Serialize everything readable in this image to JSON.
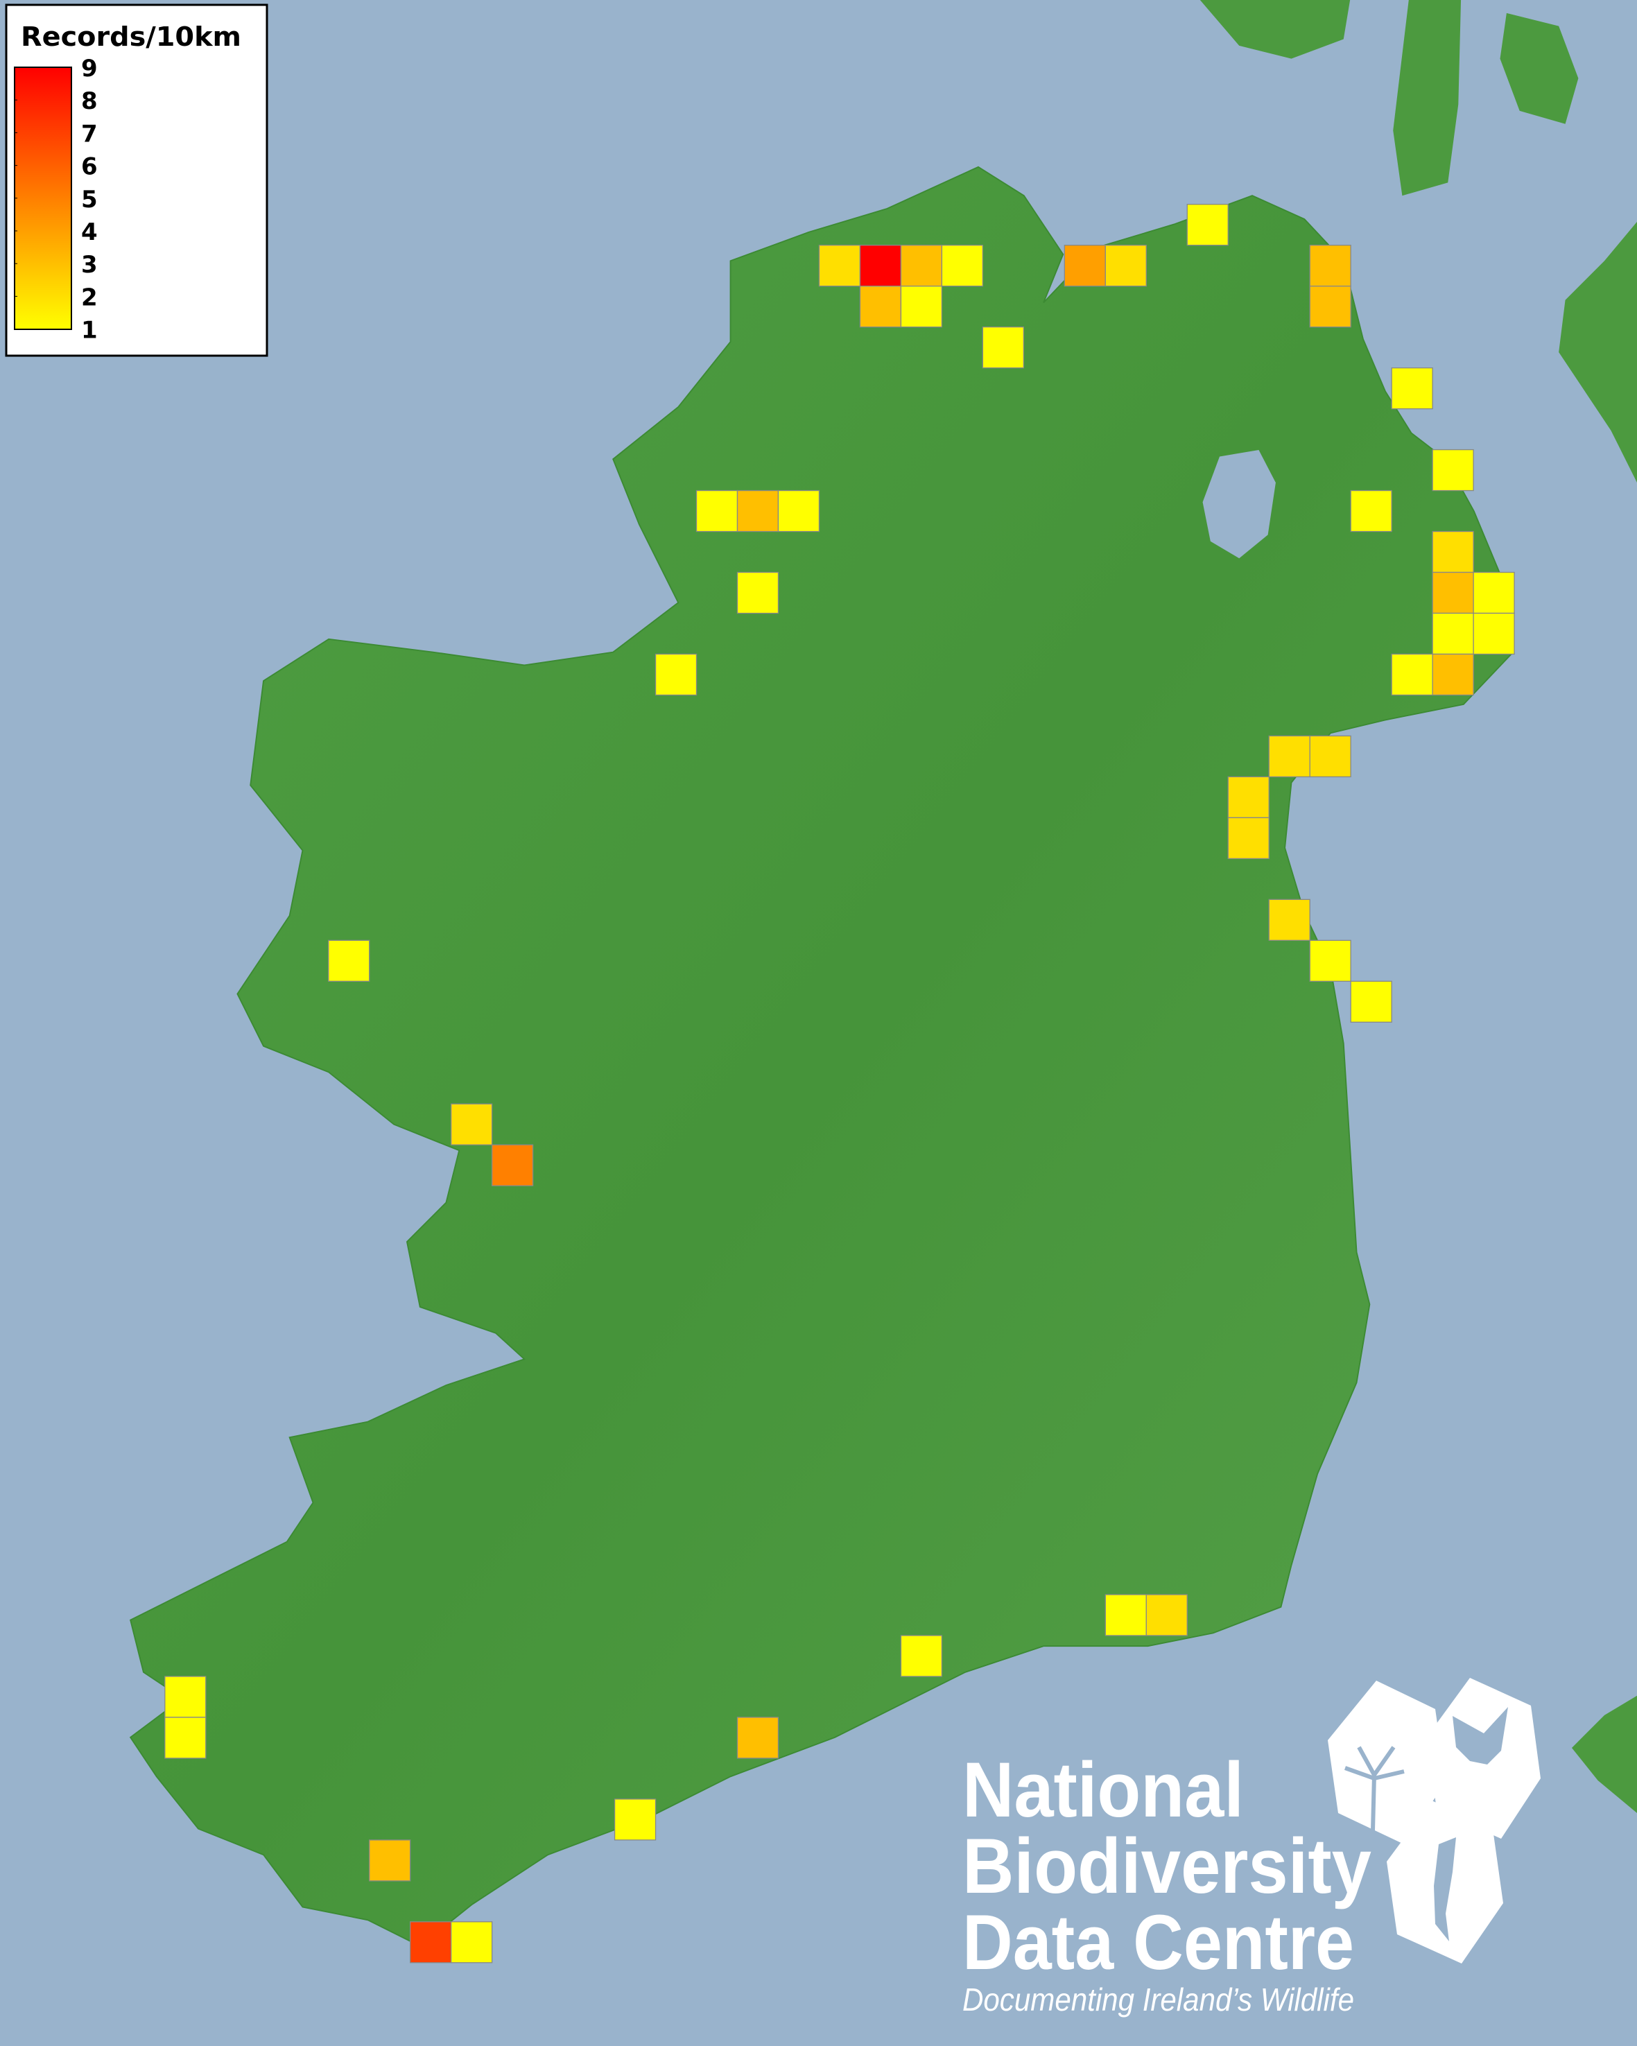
{
  "legend": {
    "title": "Records/10km",
    "labels": [
      "9",
      "8",
      "7",
      "6",
      "5",
      "4",
      "3",
      "2",
      "1"
    ],
    "min": 1,
    "max": 9,
    "color_low": "#FFFF00",
    "color_high": "#FF0000"
  },
  "map": {
    "sea_color": "#99B3CC",
    "land_color": "#4C9A3F",
    "square_border_color": "#888888",
    "grid_square_values": [
      2,
      9,
      3,
      1,
      3,
      1,
      1,
      4,
      2,
      1,
      3,
      3,
      1,
      1,
      1,
      2,
      3,
      1,
      1,
      1,
      1,
      3,
      1,
      3,
      1,
      1,
      1,
      2,
      2,
      2,
      2,
      2,
      1,
      1,
      1,
      2,
      5,
      1,
      2,
      1,
      1,
      1,
      3,
      1,
      3,
      7,
      1
    ]
  },
  "logo": {
    "line1": "National",
    "line2": "Biodiversity",
    "line3": "Data Centre",
    "tagline": "Documenting Ireland’s Wildlife",
    "icons": [
      "tree-icon",
      "butterfly-icon",
      "seahorse-icon"
    ]
  }
}
